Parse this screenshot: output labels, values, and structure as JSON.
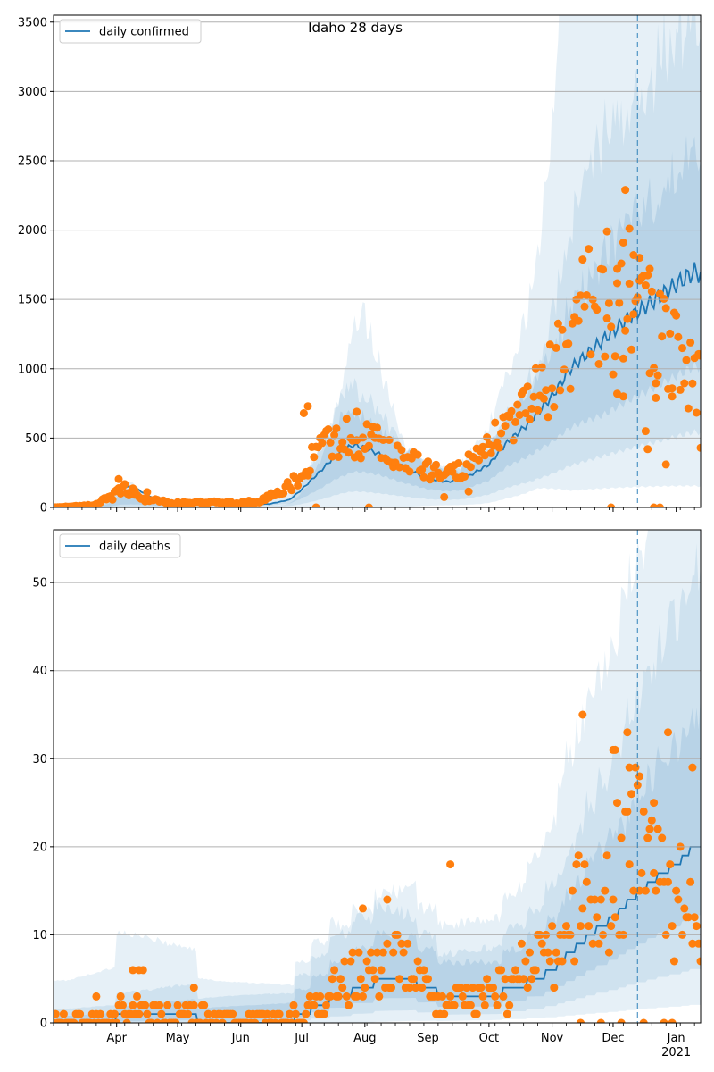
{
  "title": "Idaho 28 days",
  "colors": {
    "line": "#1f77b4",
    "points": "#ff7f0e",
    "band": "#1f77b4",
    "grid": "#b0b0b0",
    "divider": "#1f77b4"
  },
  "x_axis": {
    "month_labels": [
      "Apr",
      "May",
      "Jun",
      "Jul",
      "Aug",
      "Sep",
      "Oct",
      "Nov",
      "Dec",
      "Jan"
    ],
    "year_label": "2021"
  },
  "chart_data": [
    {
      "type": "line",
      "legend": "daily confirmed",
      "legend_position": "top-left",
      "grid": "horizontal",
      "ylim": [
        0,
        3550
      ],
      "yticks": [
        "0",
        "500",
        "1000",
        "1500",
        "2000",
        "2500",
        "3000",
        "3500"
      ],
      "forecast_start": "2020-12-13",
      "keypoints": [
        [
          "2020-03-01",
          0
        ],
        [
          "2020-03-15",
          2
        ],
        [
          "2020-03-28",
          60
        ],
        [
          "2020-04-03",
          165
        ],
        [
          "2020-04-10",
          140
        ],
        [
          "2020-04-20",
          60
        ],
        [
          "2020-05-01",
          30
        ],
        [
          "2020-05-15",
          25
        ],
        [
          "2020-06-01",
          20
        ],
        [
          "2020-06-15",
          25
        ],
        [
          "2020-06-25",
          55
        ],
        [
          "2020-07-01",
          130
        ],
        [
          "2020-07-10",
          260
        ],
        [
          "2020-07-18",
          380
        ],
        [
          "2020-07-26",
          450
        ],
        [
          "2020-08-01",
          430
        ],
        [
          "2020-08-10",
          370
        ],
        [
          "2020-08-20",
          290
        ],
        [
          "2020-09-01",
          210
        ],
        [
          "2020-09-10",
          185
        ],
        [
          "2020-09-18",
          200
        ],
        [
          "2020-10-01",
          310
        ],
        [
          "2020-10-10",
          470
        ],
        [
          "2020-10-20",
          600
        ],
        [
          "2020-11-01",
          800
        ],
        [
          "2020-11-10",
          1000
        ],
        [
          "2020-11-20",
          1130
        ],
        [
          "2020-12-01",
          1270
        ],
        [
          "2020-12-10",
          1380
        ],
        [
          "2020-12-20",
          1480
        ],
        [
          "2021-01-01",
          1610
        ],
        [
          "2021-01-10",
          1700
        ],
        [
          "2021-01-13",
          1680
        ]
      ],
      "bands": [
        {
          "name": "outer",
          "opacity": 0.11,
          "lower": [
            [
              0.02,
              0
            ],
            [
              0.3,
              0.004
            ],
            [
              0.45,
              0.006
            ],
            [
              0.55,
              0.02
            ],
            [
              0.6,
              0.08
            ],
            [
              0.66,
              0.09
            ],
            [
              0.72,
              0.16
            ],
            [
              0.75,
              0.2
            ],
            [
              0.8,
              0.12
            ],
            [
              1,
              0.09
            ]
          ],
          "upper": [
            [
              0.02,
              0
            ],
            [
              0.08,
              0.9
            ],
            [
              0.12,
              1.2
            ],
            [
              0.2,
              0.3
            ],
            [
              0.35,
              0.28
            ],
            [
              0.42,
              1.35
            ],
            [
              0.48,
              3.3
            ],
            [
              0.55,
              1.4
            ],
            [
              0.63,
              1.6
            ],
            [
              0.7,
              2.0
            ],
            [
              0.75,
              2.55
            ],
            [
              0.8,
              5
            ],
            [
              1,
              5
            ]
          ]
        },
        {
          "name": "mid",
          "opacity": 0.11,
          "lower": [
            [
              0.02,
              0
            ],
            [
              0.3,
              0.1
            ],
            [
              0.45,
              0.25
            ],
            [
              0.6,
              0.28
            ],
            [
              0.7,
              0.3
            ],
            [
              0.8,
              0.3
            ],
            [
              1,
              0.32
            ]
          ],
          "upper": [
            [
              0.02,
              0
            ],
            [
              0.1,
              0.9
            ],
            [
              0.3,
              0.4
            ],
            [
              0.45,
              2.0
            ],
            [
              0.55,
              1.5
            ],
            [
              0.65,
              1.3
            ],
            [
              0.75,
              1.5
            ],
            [
              0.82,
              2.2
            ],
            [
              0.9,
              2.1
            ],
            [
              1,
              2.1
            ]
          ]
        },
        {
          "name": "inner",
          "opacity": 0.13,
          "lower": [
            [
              0.02,
              0
            ],
            [
              0.3,
              0.4
            ],
            [
              0.5,
              0.6
            ],
            [
              0.7,
              0.62
            ],
            [
              0.85,
              0.55
            ],
            [
              1,
              0.6
            ]
          ],
          "upper": [
            [
              0.02,
              0
            ],
            [
              0.3,
              1.8
            ],
            [
              0.5,
              1.45
            ],
            [
              0.7,
              1.35
            ],
            [
              0.82,
              1.45
            ],
            [
              1,
              1.5
            ]
          ]
        }
      ],
      "observed": {
        "points_per_day": 1,
        "keypoints": [
          [
            "2020-03-01",
            0
          ],
          [
            "2020-03-20",
            15
          ],
          [
            "2020-03-30",
            80
          ],
          [
            "2020-04-04",
            150
          ],
          [
            "2020-04-15",
            55
          ],
          [
            "2020-05-01",
            30
          ],
          [
            "2020-06-10",
            40
          ],
          [
            "2020-06-25",
            150
          ],
          [
            "2020-07-10",
            420
          ],
          [
            "2020-07-25",
            520
          ],
          [
            "2020-08-05",
            480
          ],
          [
            "2020-08-20",
            330
          ],
          [
            "2020-09-05",
            260
          ],
          [
            "2020-09-20",
            300
          ],
          [
            "2020-10-05",
            500
          ],
          [
            "2020-10-20",
            700
          ],
          [
            "2020-11-05",
            1050
          ],
          [
            "2020-11-18",
            1450
          ],
          [
            "2020-12-01",
            1300
          ],
          [
            "2020-12-10",
            1500
          ],
          [
            "2020-12-20",
            1250
          ],
          [
            "2021-01-01",
            1100
          ],
          [
            "2021-01-13",
            900
          ]
        ],
        "spread": 0.3,
        "outliers": [
          [
            "2020-12-07",
            2290
          ],
          [
            "2020-12-09",
            2010
          ],
          [
            "2020-12-06",
            1910
          ],
          [
            "2020-12-11",
            1820
          ],
          [
            "2020-12-14",
            1800
          ],
          [
            "2020-12-03",
            1720
          ],
          [
            "2020-12-19",
            1720
          ],
          [
            "2020-11-28",
            1990
          ],
          [
            "2020-12-06",
            800
          ],
          [
            "2020-12-03",
            820
          ],
          [
            "2020-12-22",
            790
          ],
          [
            "2020-12-30",
            800
          ],
          [
            "2020-12-17",
            550
          ],
          [
            "2020-12-18",
            420
          ],
          [
            "2020-12-27",
            310
          ],
          [
            "2021-01-13",
            430
          ],
          [
            "2020-12-21",
            0
          ],
          [
            "2020-12-24",
            0
          ],
          [
            "2020-11-30",
            0
          ],
          [
            "2020-08-03",
            0
          ],
          [
            "2020-07-08",
            0
          ],
          [
            "2020-07-04",
            730
          ],
          [
            "2020-07-02",
            680
          ],
          [
            "2020-07-28",
            690
          ],
          [
            "2020-04-02",
            205
          ],
          [
            "2020-04-10",
            120
          ],
          [
            "2020-04-16",
            110
          ],
          [
            "2020-09-09",
            75
          ],
          [
            "2020-09-21",
            115
          ]
        ]
      }
    },
    {
      "type": "line",
      "legend": "daily deaths",
      "legend_position": "top-left",
      "grid": "horizontal",
      "ylim": [
        0,
        56
      ],
      "yticks": [
        "0",
        "10",
        "20",
        "30",
        "40",
        "50"
      ],
      "forecast_start": "2020-12-13",
      "keypoints": [
        [
          "2020-03-01",
          0
        ],
        [
          "2020-03-28",
          0
        ],
        [
          "2020-04-05",
          1
        ],
        [
          "2020-04-20",
          1
        ],
        [
          "2020-05-05",
          1
        ],
        [
          "2020-05-15",
          0
        ],
        [
          "2020-06-01",
          0
        ],
        [
          "2020-06-25",
          0
        ],
        [
          "2020-07-01",
          1
        ],
        [
          "2020-07-10",
          2
        ],
        [
          "2020-07-20",
          3
        ],
        [
          "2020-08-01",
          4
        ],
        [
          "2020-08-10",
          5
        ],
        [
          "2020-08-20",
          5
        ],
        [
          "2020-09-01",
          4
        ],
        [
          "2020-09-10",
          3
        ],
        [
          "2020-09-20",
          3
        ],
        [
          "2020-10-01",
          3
        ],
        [
          "2020-10-15",
          4
        ],
        [
          "2020-10-25",
          5
        ],
        [
          "2020-11-01",
          6
        ],
        [
          "2020-11-10",
          8
        ],
        [
          "2020-11-20",
          10
        ],
        [
          "2020-12-01",
          12
        ],
        [
          "2020-12-10",
          14
        ],
        [
          "2020-12-20",
          16
        ],
        [
          "2021-01-01",
          18
        ],
        [
          "2021-01-10",
          20
        ],
        [
          "2021-01-13",
          20
        ]
      ],
      "bands": [
        {
          "name": "outer",
          "opacity": 0.11,
          "lower": [
            [
              0.02,
              0
            ],
            [
              0.45,
              0
            ],
            [
              0.7,
              0.1
            ],
            [
              0.8,
              0.1
            ],
            [
              1,
              0.1
            ]
          ],
          "upper": [
            [
              0.02,
              3
            ],
            [
              0.1,
              4
            ],
            [
              0.25,
              3
            ],
            [
              0.4,
              2.6
            ],
            [
              0.5,
              2.2
            ],
            [
              0.6,
              2.4
            ],
            [
              0.7,
              2.6
            ],
            [
              0.8,
              3.2
            ],
            [
              1,
              3.2
            ]
          ]
        },
        {
          "name": "mid",
          "opacity": 0.11,
          "lower": [
            [
              0.02,
              0
            ],
            [
              0.5,
              0.25
            ],
            [
              0.7,
              0.3
            ],
            [
              1,
              0.3
            ]
          ],
          "upper": [
            [
              0.02,
              1
            ],
            [
              0.3,
              2
            ],
            [
              0.45,
              2.2
            ],
            [
              0.6,
              1.7
            ],
            [
              0.8,
              2.1
            ],
            [
              1,
              2.4
            ]
          ]
        },
        {
          "name": "inner",
          "opacity": 0.13,
          "lower": [
            [
              0.02,
              0
            ],
            [
              0.4,
              0.5
            ],
            [
              0.7,
              0.55
            ],
            [
              1,
              0.6
            ]
          ],
          "upper": [
            [
              0.02,
              0.5
            ],
            [
              0.4,
              1.5
            ],
            [
              0.7,
              1.5
            ],
            [
              1,
              1.6
            ]
          ]
        }
      ],
      "observed": {
        "points_per_day": 1,
        "keypoints": [
          [
            "2020-03-01",
            0
          ],
          [
            "2020-03-25",
            0
          ],
          [
            "2020-04-05",
            2
          ],
          [
            "2020-04-20",
            1
          ],
          [
            "2020-05-10",
            1
          ],
          [
            "2020-05-20",
            0
          ],
          [
            "2020-06-25",
            0
          ],
          [
            "2020-07-10",
            2
          ],
          [
            "2020-07-25",
            5
          ],
          [
            "2020-08-10",
            7
          ],
          [
            "2020-08-25",
            5
          ],
          [
            "2020-09-10",
            3
          ],
          [
            "2020-09-25",
            3
          ],
          [
            "2020-10-10",
            4
          ],
          [
            "2020-10-25",
            7
          ],
          [
            "2020-11-10",
            11
          ],
          [
            "2020-11-25",
            15
          ],
          [
            "2020-12-05",
            20
          ],
          [
            "2020-12-15",
            18
          ],
          [
            "2020-12-25",
            15
          ],
          [
            "2021-01-13",
            12
          ]
        ],
        "spread": 0.5,
        "outliers": [
          [
            "2020-11-16",
            35
          ],
          [
            "2020-12-08",
            33
          ],
          [
            "2020-12-28",
            33
          ],
          [
            "2020-12-01",
            31
          ],
          [
            "2020-12-02",
            31
          ],
          [
            "2020-12-09",
            29
          ],
          [
            "2021-01-09",
            29
          ],
          [
            "2020-12-14",
            28
          ],
          [
            "2020-12-21",
            25
          ],
          [
            "2020-11-15",
            0
          ],
          [
            "2020-11-25",
            0
          ],
          [
            "2020-12-05",
            0
          ],
          [
            "2020-12-16",
            0
          ],
          [
            "2020-12-26",
            0
          ],
          [
            "2020-12-30",
            0
          ],
          [
            "2020-09-12",
            18
          ],
          [
            "2020-07-31",
            13
          ],
          [
            "2020-08-12",
            14
          ],
          [
            "2020-04-09",
            6
          ],
          [
            "2020-04-12",
            6
          ],
          [
            "2020-04-14",
            6
          ],
          [
            "2020-03-22",
            3
          ],
          [
            "2020-05-09",
            4
          ]
        ]
      }
    }
  ]
}
